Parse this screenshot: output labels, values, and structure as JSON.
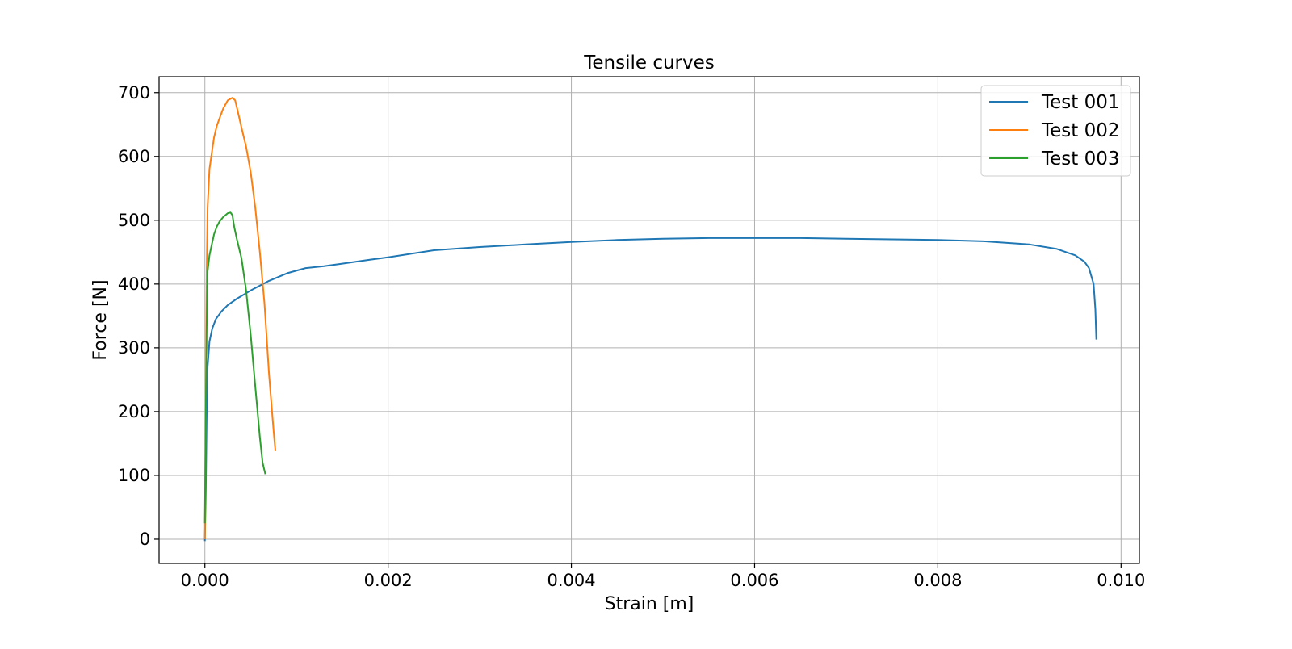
{
  "chart_data": {
    "type": "line",
    "title": "Tensile curves",
    "xlabel": "Strain [m]",
    "ylabel": "Force [N]",
    "xlim": [
      -0.0005,
      0.0102
    ],
    "ylim": [
      -38,
      725
    ],
    "grid": true,
    "legend_position": "top-right",
    "xticks": [
      0.0,
      0.002,
      0.004,
      0.006,
      0.008,
      0.01
    ],
    "xtick_labels": [
      "0.000",
      "0.002",
      "0.004",
      "0.006",
      "0.008",
      "0.010"
    ],
    "yticks": [
      0,
      100,
      200,
      300,
      400,
      500,
      600,
      700
    ],
    "ytick_labels": [
      "0",
      "100",
      "200",
      "300",
      "400",
      "500",
      "600",
      "700"
    ],
    "series": [
      {
        "name": "Test 001",
        "color": "#1f77b4",
        "x": [
          0.0,
          1e-05,
          2e-05,
          3e-05,
          5e-05,
          8e-05,
          0.00012,
          0.00018,
          0.00025,
          0.00035,
          0.0005,
          0.0007,
          0.0009,
          0.0011,
          0.0013,
          0.0015,
          0.0018,
          0.002,
          0.0025,
          0.003,
          0.0035,
          0.004,
          0.0045,
          0.005,
          0.0055,
          0.006,
          0.0065,
          0.007,
          0.0075,
          0.008,
          0.0085,
          0.009,
          0.0093,
          0.0095,
          0.0096,
          0.00965,
          0.0097,
          0.00972,
          0.00973
        ],
        "y": [
          -3,
          80,
          200,
          270,
          310,
          330,
          345,
          357,
          367,
          377,
          390,
          405,
          417,
          425,
          428,
          432,
          438,
          442,
          453,
          458,
          462,
          466,
          469,
          471,
          472,
          472,
          472,
          471,
          470,
          469,
          467,
          462,
          455,
          445,
          435,
          425,
          400,
          360,
          313
        ]
      },
      {
        "name": "Test 002",
        "color": "#ff7f0e",
        "x": [
          0.0,
          1e-05,
          2e-05,
          3e-05,
          5e-05,
          8e-05,
          0.0001,
          0.00013,
          0.00016,
          0.0002,
          0.00025,
          0.0003,
          0.00033,
          0.00036,
          0.0004,
          0.00045,
          0.0005,
          0.00055,
          0.0006,
          0.00065,
          0.0007,
          0.00075,
          0.00077
        ],
        "y": [
          0,
          200,
          420,
          520,
          580,
          610,
          630,
          648,
          660,
          675,
          688,
          692,
          688,
          670,
          645,
          615,
          575,
          520,
          450,
          370,
          260,
          170,
          138
        ]
      },
      {
        "name": "Test 003",
        "color": "#2ca02c",
        "x": [
          0.0,
          1e-05,
          2e-05,
          3e-05,
          5e-05,
          8e-05,
          0.0001,
          0.00013,
          0.00016,
          0.0002,
          0.00025,
          0.00028,
          0.0003,
          0.00032,
          0.00035,
          0.0004,
          0.00045,
          0.0005,
          0.00055,
          0.0006,
          0.00063,
          0.00066
        ],
        "y": [
          25,
          200,
          340,
          420,
          445,
          465,
          478,
          490,
          498,
          505,
          511,
          512,
          508,
          490,
          470,
          440,
          390,
          320,
          240,
          160,
          120,
          102
        ]
      }
    ]
  }
}
